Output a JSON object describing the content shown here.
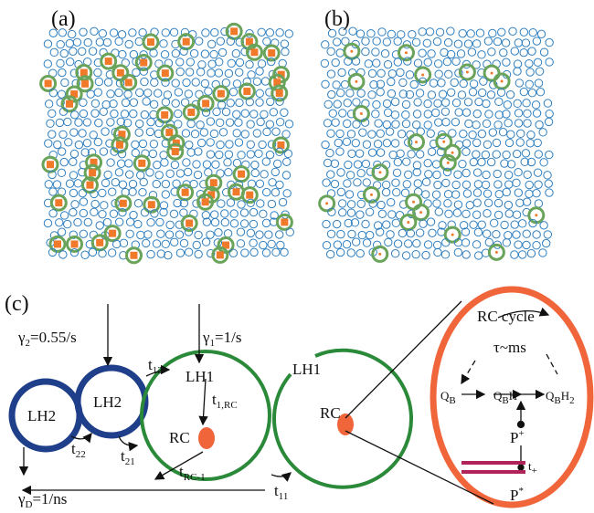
{
  "panels": {
    "a": "(a)",
    "b": "(b)",
    "c": "(c)"
  },
  "diagram": {
    "gamma2": [
      "γ",
      "2",
      "=0.55/s"
    ],
    "gamma1": [
      "γ",
      "1",
      "=1/s"
    ],
    "gammaD": [
      "γ",
      "D",
      "=1/ns"
    ],
    "t12": [
      "t",
      "12"
    ],
    "t22": [
      "t",
      "22"
    ],
    "t21": [
      "t",
      "21"
    ],
    "t11": [
      "t",
      "11"
    ],
    "t1rc": [
      "t",
      "1,RC"
    ],
    "trc1": [
      "t",
      "RC-1"
    ],
    "lh2a": "LH2",
    "lh2b": "LH2",
    "lh1a": "LH1",
    "lh1b": "LH1",
    "rca": "RC",
    "rcb": "RC",
    "cycle": "RC cycle",
    "tau": "τ~ms",
    "qb": [
      "Q",
      "B"
    ],
    "qbh": [
      "Q",
      "B",
      "H"
    ],
    "qbh2": [
      "Q",
      "B",
      "H",
      "2"
    ],
    "pplus": [
      "P",
      "+"
    ],
    "tplus": [
      "t",
      "+"
    ],
    "pstar": [
      "P",
      "*"
    ]
  }
}
